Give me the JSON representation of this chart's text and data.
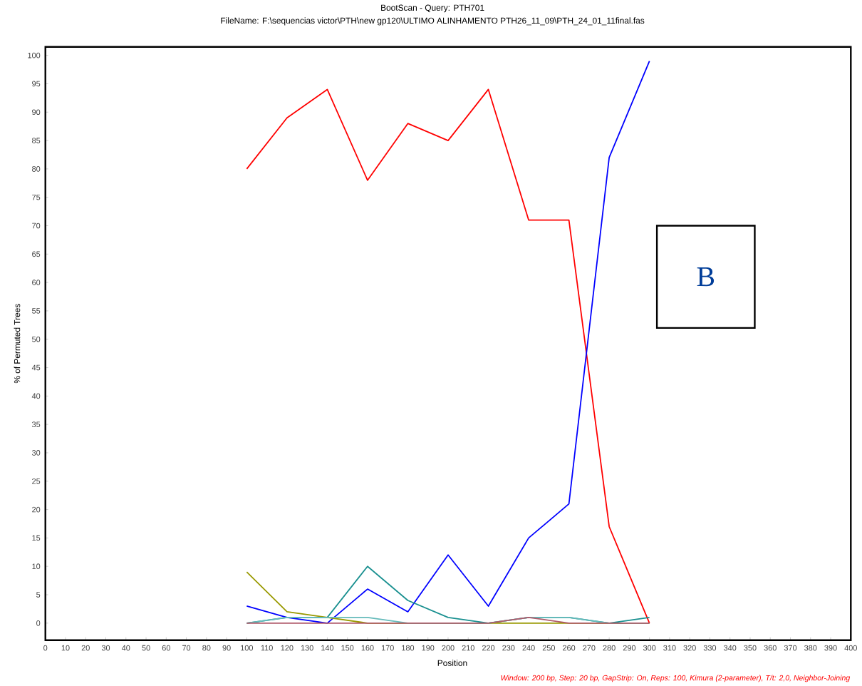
{
  "chart_data": {
    "type": "line",
    "title": "BootScan - Query: PTH701",
    "subtitle": "FileName: F:\\sequencias victor\\PTH\\new gp120\\ULTIMO ALINHAMENTO PTH26_11_09\\PTH_24_01_11final.fas",
    "xlabel": "Position",
    "ylabel": "% of Permuted Trees",
    "annotations": [
      "B",
      "Window: 200 bp, Step: 20 bp, GapStrip: On, Reps: 100, Kimura (2-parameter), T/t: 2,0, Neighbor-Joining"
    ],
    "x": [
      100,
      120,
      140,
      160,
      180,
      200,
      220,
      240,
      260,
      280,
      300
    ],
    "series": [
      {
        "color": "#ff0000",
        "values": [
          80,
          89,
          94,
          78,
          88,
          85,
          94,
          71,
          71,
          17,
          0
        ]
      },
      {
        "color": "#0000ff",
        "values": [
          3,
          1,
          0,
          6,
          2,
          12,
          3,
          15,
          21,
          82,
          99
        ]
      },
      {
        "color": "#1a9090",
        "values": [
          0,
          1,
          1,
          10,
          4,
          1,
          0,
          1,
          1,
          0,
          1
        ]
      },
      {
        "color": "#999900",
        "values": [
          9,
          2,
          1,
          0,
          0,
          0,
          0,
          0,
          0,
          0,
          0
        ]
      },
      {
        "color": "#66bbbb",
        "values": [
          0,
          1,
          1,
          1,
          0,
          0,
          0,
          1,
          1,
          0,
          0
        ]
      },
      {
        "color": "#b05a6a",
        "values": [
          0,
          0,
          0,
          0,
          0,
          0,
          0,
          1,
          0,
          0,
          0
        ]
      }
    ],
    "xlim": [
      0,
      400
    ],
    "ylim": [
      -3,
      101.5
    ],
    "xticks": [
      0,
      10,
      20,
      30,
      40,
      50,
      60,
      70,
      80,
      90,
      100,
      110,
      120,
      130,
      140,
      150,
      160,
      170,
      180,
      190,
      200,
      210,
      220,
      230,
      240,
      250,
      260,
      270,
      280,
      290,
      300,
      310,
      320,
      330,
      340,
      350,
      360,
      370,
      380,
      390,
      400
    ],
    "yticks": [
      0,
      5,
      10,
      15,
      20,
      25,
      30,
      35,
      40,
      45,
      50,
      55,
      60,
      65,
      70,
      75,
      80,
      85,
      90,
      95,
      100
    ],
    "marker": "none",
    "line_style": "solid"
  }
}
